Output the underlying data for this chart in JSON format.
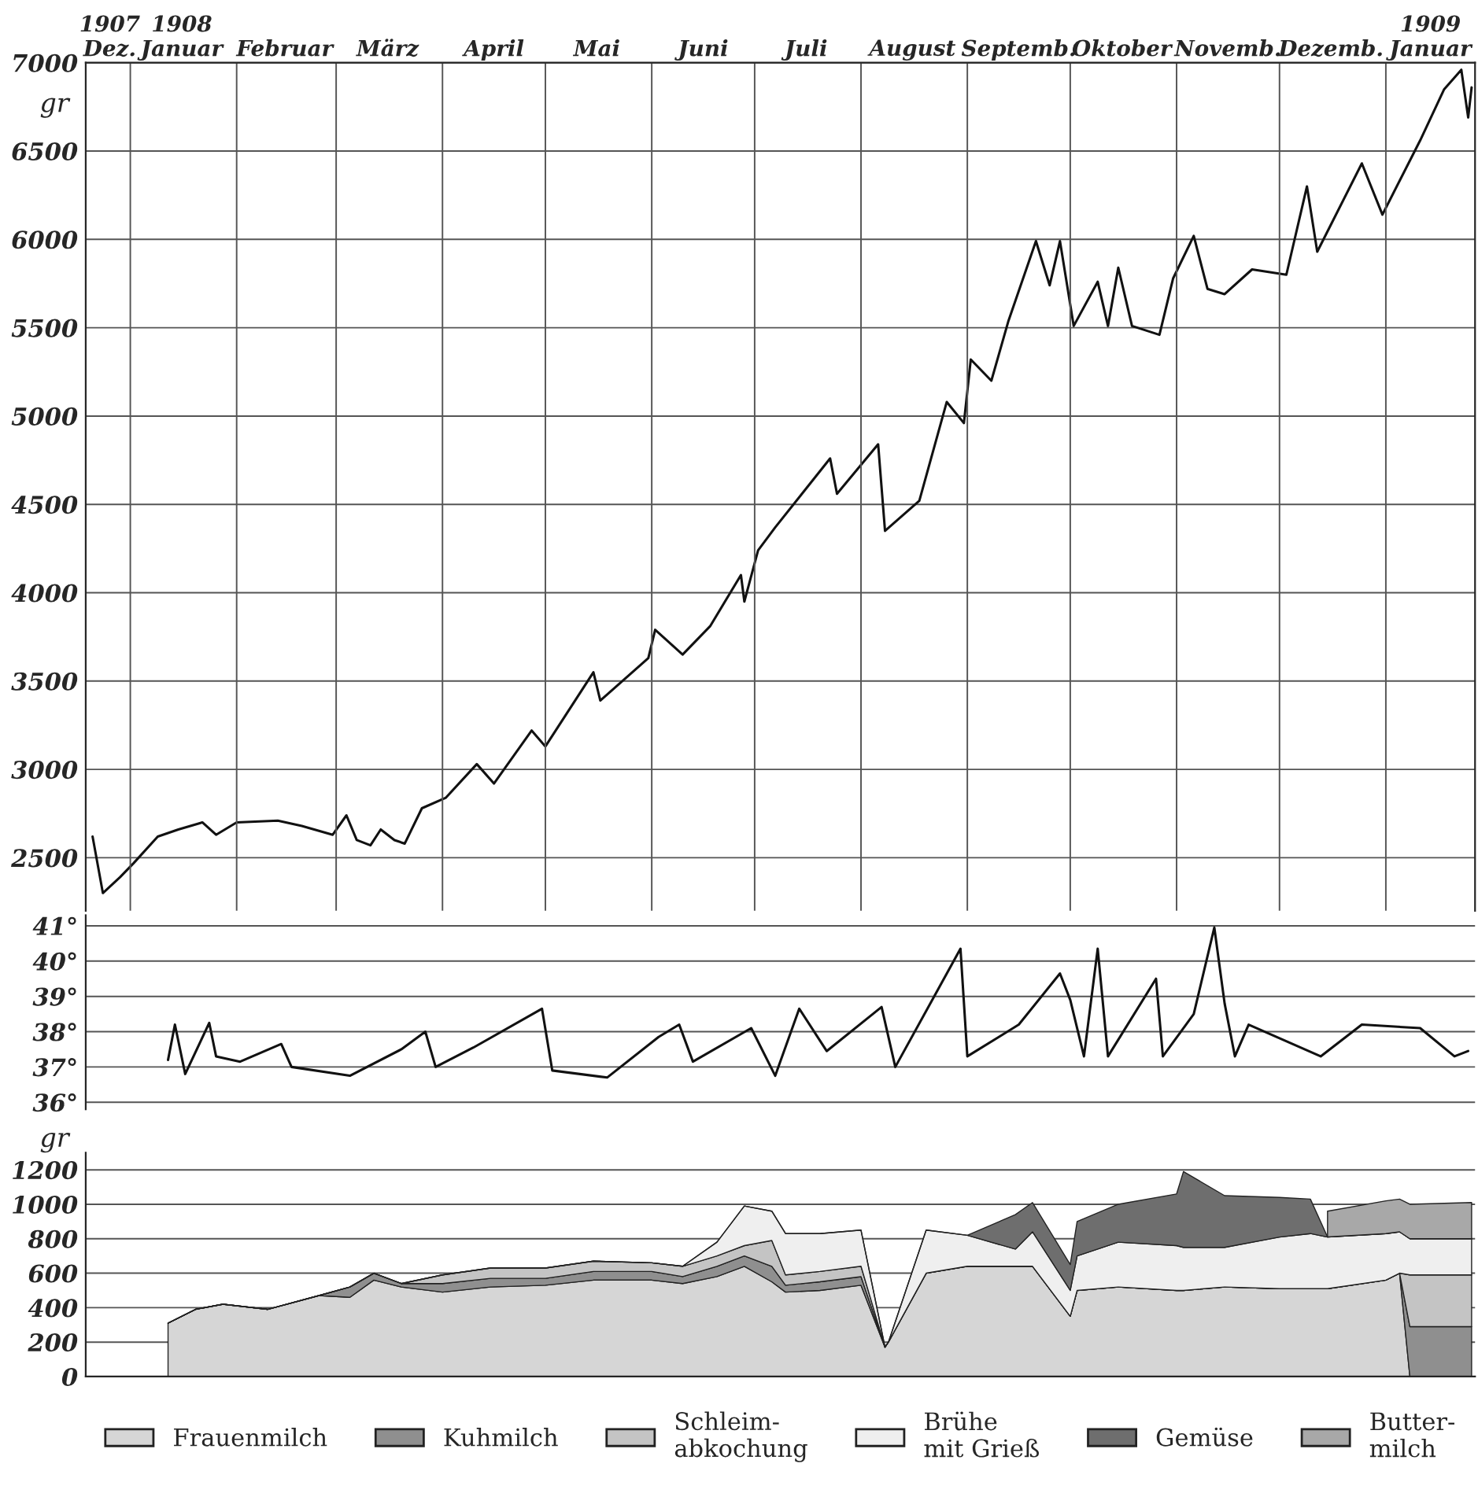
{
  "chart_data": [
    {
      "type": "line",
      "ylabel": "gr",
      "xlim": [
        "1907-12-19",
        "1909-01-27"
      ],
      "ylim": [
        2200,
        7000
      ],
      "yticks": [
        2500,
        3000,
        3500,
        4000,
        4500,
        5000,
        5500,
        6000,
        6500,
        7000
      ],
      "ref_lines": [
        {
          "axis": "x",
          "value": "1908-01-01"
        },
        {
          "axis": "x",
          "value": "1908-02-01"
        },
        {
          "axis": "x",
          "value": "1908-03-01"
        },
        {
          "axis": "x",
          "value": "1908-04-01"
        },
        {
          "axis": "x",
          "value": "1908-05-01"
        },
        {
          "axis": "x",
          "value": "1908-06-01"
        },
        {
          "axis": "x",
          "value": "1908-07-01"
        },
        {
          "axis": "x",
          "value": "1908-08-01"
        },
        {
          "axis": "x",
          "value": "1908-09-01"
        },
        {
          "axis": "x",
          "value": "1908-10-01"
        },
        {
          "axis": "x",
          "value": "1908-11-01"
        },
        {
          "axis": "x",
          "value": "1908-12-01"
        },
        {
          "axis": "x",
          "value": "1909-01-01"
        }
      ],
      "xticks": [
        {
          "value": "1907-12-26",
          "label": "1907\nDez."
        },
        {
          "value": "1908-01-16",
          "label": "1908\nJanuar"
        },
        {
          "value": "1908-02-15",
          "label": "Februar"
        },
        {
          "value": "1908-03-16",
          "label": "März"
        },
        {
          "value": "1908-04-16",
          "label": "April"
        },
        {
          "value": "1908-05-16",
          "label": "Mai"
        },
        {
          "value": "1908-06-16",
          "label": "Juni"
        },
        {
          "value": "1908-07-16",
          "label": "Juli"
        },
        {
          "value": "1908-08-16",
          "label": "August"
        },
        {
          "value": "1908-09-16",
          "label": "Septemb."
        },
        {
          "value": "1908-10-16",
          "label": "Oktober"
        },
        {
          "value": "1908-11-16",
          "label": "Novemb."
        },
        {
          "value": "1908-12-16",
          "label": "Dezemb."
        },
        {
          "value": "1909-01-14",
          "label": "1909\nJanuar"
        }
      ],
      "grid": "y",
      "series": [
        {
          "color": "#111111",
          "x": [
            "1907-12-21",
            "1907-12-24",
            "1907-12-29",
            "1908-01-02",
            "1908-01-09",
            "1908-01-15",
            "1908-01-22",
            "1908-01-26",
            "1908-02-01",
            "1908-02-13",
            "1908-02-20",
            "1908-02-29",
            "1908-03-04",
            "1908-03-07",
            "1908-03-11",
            "1908-03-14",
            "1908-03-18",
            "1908-03-21",
            "1908-03-26",
            "1908-04-02",
            "1908-04-11",
            "1908-04-16",
            "1908-04-27",
            "1908-05-01",
            "1908-05-15",
            "1908-05-17",
            "1908-05-31",
            "1908-06-02",
            "1908-06-10",
            "1908-06-18",
            "1908-06-27",
            "1908-06-28",
            "1908-07-02",
            "1908-07-07",
            "1908-07-23",
            "1908-07-25",
            "1908-08-06",
            "1908-08-08",
            "1908-08-18",
            "1908-08-26",
            "1908-08-31",
            "1908-09-02",
            "1908-09-08",
            "1908-09-13",
            "1908-09-21",
            "1908-09-25",
            "1908-09-28",
            "1908-10-02",
            "1908-10-09",
            "1908-10-12",
            "1908-10-15",
            "1908-10-19",
            "1908-10-27",
            "1908-10-31",
            "1908-11-06",
            "1908-11-10",
            "1908-11-15",
            "1908-11-23",
            "1908-12-03",
            "1908-12-09",
            "1908-12-12",
            "1908-12-25",
            "1908-12-31",
            "1909-01-11",
            "1909-01-18",
            "1909-01-23",
            "1909-01-25",
            "1909-01-26"
          ],
          "values": [
            2620,
            2300,
            2390,
            2470,
            2620,
            2660,
            2700,
            2630,
            2700,
            2710,
            2680,
            2630,
            2740,
            2600,
            2570,
            2660,
            2600,
            2580,
            2780,
            2840,
            3030,
            2920,
            3220,
            3130,
            3550,
            3390,
            3630,
            3790,
            3650,
            3810,
            4100,
            3950,
            4240,
            4370,
            4760,
            4560,
            4840,
            4350,
            4520,
            5080,
            4960,
            5320,
            5200,
            5540,
            5990,
            5740,
            5990,
            5510,
            5760,
            5510,
            5840,
            5510,
            5460,
            5780,
            6020,
            5720,
            5690,
            5830,
            5800,
            6300,
            5930,
            6430,
            6140,
            6560,
            6850,
            6960,
            6690,
            6860
          ]
        }
      ]
    },
    {
      "type": "line",
      "xlim": [
        "1907-12-19",
        "1909-01-27"
      ],
      "ylim": [
        35.8,
        41.3
      ],
      "yticks": [
        {
          "value": 36,
          "label": "36°"
        },
        {
          "value": 37,
          "label": "37°"
        },
        {
          "value": 38,
          "label": "38°"
        },
        {
          "value": 39,
          "label": "39°"
        },
        {
          "value": 40,
          "label": "40°"
        },
        {
          "value": 41,
          "label": "41°"
        }
      ],
      "grid": "y",
      "tick_labels": "y",
      "series": [
        {
          "color": "#111111",
          "x": [
            "1908-01-12",
            "1908-01-14",
            "1908-01-17",
            "1908-01-24",
            "1908-01-26",
            "1908-02-02",
            "1908-02-14",
            "1908-02-17",
            "1908-03-05",
            "1908-03-20",
            "1908-03-27",
            "1908-03-30",
            "1908-04-10",
            "1908-04-30",
            "1908-05-03",
            "1908-05-19",
            "1908-06-03",
            "1908-06-09",
            "1908-06-13",
            "1908-06-30",
            "1908-07-07",
            "1908-07-14",
            "1908-07-22",
            "1908-08-07",
            "1908-08-11",
            "1908-08-30",
            "1908-09-01",
            "1908-09-16",
            "1908-09-28",
            "1908-10-01",
            "1908-10-05",
            "1908-10-09",
            "1908-10-12",
            "1908-10-26",
            "1908-10-28",
            "1908-11-06",
            "1908-11-12",
            "1908-11-15",
            "1908-11-18",
            "1908-11-22",
            "1908-12-13",
            "1908-12-25",
            "1909-01-11",
            "1909-01-21",
            "1909-01-25"
          ],
          "values": [
            37.2,
            38.2,
            36.8,
            38.25,
            37.3,
            37.15,
            37.65,
            37.0,
            36.75,
            37.5,
            38.0,
            37.0,
            37.55,
            38.65,
            36.9,
            36.7,
            37.85,
            38.2,
            37.15,
            38.1,
            36.75,
            38.65,
            37.45,
            38.7,
            37.0,
            40.35,
            37.3,
            38.2,
            39.65,
            38.9,
            37.3,
            40.35,
            37.3,
            39.5,
            37.3,
            38.5,
            40.95,
            38.8,
            37.3,
            38.2,
            37.3,
            38.2,
            38.1,
            37.3,
            37.45
          ]
        }
      ]
    },
    {
      "type": "area",
      "stacked": true,
      "ylabel": "gr",
      "xlim": [
        "1907-12-19",
        "1909-01-27"
      ],
      "ylim": [
        0,
        1300
      ],
      "yticks": [
        0,
        200,
        400,
        600,
        800,
        1000,
        1200
      ],
      "grid": "y",
      "tick_labels": "y",
      "legend": "bottom",
      "x": [
        "1908-01-12",
        "1908-01-20",
        "1908-01-28",
        "1908-02-10",
        "1908-02-25",
        "1908-03-05",
        "1908-03-12",
        "1908-03-20",
        "1908-04-01",
        "1908-04-15",
        "1908-05-01",
        "1908-05-15",
        "1908-06-01",
        "1908-06-10",
        "1908-06-20",
        "1908-06-28",
        "1908-07-06",
        "1908-07-10",
        "1908-07-20",
        "1908-08-01",
        "1908-08-08",
        "1908-08-09",
        "1908-08-20",
        "1908-09-01",
        "1908-09-15",
        "1908-09-20",
        "1908-10-01",
        "1908-10-03",
        "1908-10-15",
        "1908-11-01",
        "1908-11-03",
        "1908-11-15",
        "1908-12-01",
        "1908-12-10",
        "1908-12-15",
        "1909-01-01",
        "1909-01-05",
        "1909-01-08",
        "1909-01-26"
      ],
      "series": [
        {
          "name": "Frauenmilch",
          "color": "#d6d6d6",
          "values": [
            310,
            390,
            420,
            390,
            470,
            460,
            560,
            520,
            490,
            520,
            530,
            560,
            560,
            540,
            580,
            640,
            550,
            490,
            500,
            530,
            170,
            200,
            600,
            640,
            640,
            640,
            350,
            500,
            520,
            500,
            500,
            520,
            510,
            510,
            510,
            560,
            600,
            0,
            0
          ]
        },
        {
          "name": "Kuhmilch",
          "color": "#8f8f8f",
          "values": [
            0,
            0,
            0,
            0,
            0,
            60,
            40,
            20,
            50,
            50,
            40,
            50,
            50,
            40,
            60,
            60,
            90,
            40,
            50,
            50,
            0,
            0,
            0,
            0,
            0,
            0,
            0,
            0,
            0,
            0,
            0,
            0,
            0,
            0,
            0,
            0,
            0,
            290,
            290
          ]
        },
        {
          "name": "Schleim-\nabkochung",
          "color": "#c4c4c4",
          "values": [
            0,
            0,
            0,
            0,
            0,
            0,
            0,
            0,
            50,
            60,
            60,
            60,
            50,
            60,
            60,
            60,
            150,
            60,
            60,
            60,
            0,
            0,
            0,
            0,
            0,
            0,
            0,
            0,
            0,
            0,
            0,
            0,
            0,
            0,
            0,
            0,
            0,
            300,
            300
          ]
        },
        {
          "name": "Brühe\nmit Grieß",
          "color": "#efefef",
          "values": [
            0,
            0,
            0,
            0,
            0,
            0,
            0,
            0,
            0,
            0,
            0,
            0,
            0,
            0,
            80,
            230,
            170,
            240,
            220,
            210,
            0,
            0,
            250,
            180,
            100,
            200,
            150,
            200,
            260,
            260,
            250,
            230,
            300,
            320,
            300,
            270,
            240,
            210,
            210
          ]
        },
        {
          "name": "Gemüse",
          "color": "#6e6e6e",
          "values": [
            0,
            0,
            0,
            0,
            0,
            0,
            0,
            0,
            0,
            0,
            0,
            0,
            0,
            0,
            0,
            0,
            0,
            0,
            0,
            0,
            0,
            0,
            0,
            0,
            200,
            170,
            150,
            200,
            220,
            300,
            440,
            300,
            230,
            200,
            0,
            0,
            0,
            0,
            0
          ]
        },
        {
          "name": "Butter-\nmilch",
          "color": "#a8a8a8",
          "values": [
            null,
            null,
            null,
            null,
            null,
            null,
            null,
            null,
            null,
            null,
            null,
            null,
            null,
            null,
            null,
            null,
            null,
            null,
            null,
            null,
            null,
            null,
            null,
            null,
            null,
            null,
            null,
            null,
            null,
            null,
            null,
            null,
            null,
            null,
            150,
            190,
            190,
            200,
            210
          ]
        }
      ]
    }
  ]
}
